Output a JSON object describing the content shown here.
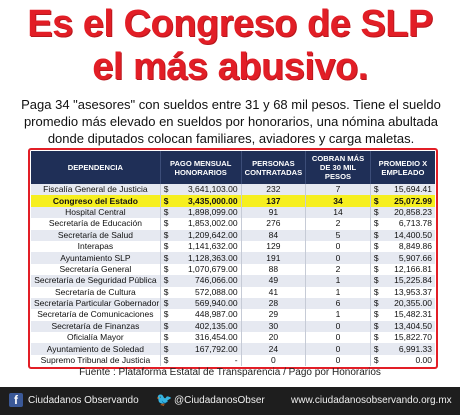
{
  "headline": {
    "line1": "Es el Congreso de SLP",
    "line2": "el más abusivo."
  },
  "intro": "Paga 34 \"asesores\" con sueldos entre 31 y 68 mil pesos.  Tiene el sueldo promedio más elevado en sueldos por honorarios, una nómina abultada donde diputados colocan familiares, aviadores y carga maletas.",
  "table": {
    "headers": [
      "DEPENDENCIA",
      "PAGO MENSUAL HONORARIOS",
      "PERSONAS CONTRATADAS",
      "COBRAN MÁS DE 30 MIL PESOS",
      "PROMEDIO X EMPLEADO"
    ],
    "currency": "$",
    "rows": [
      {
        "dep": "Fiscalía General de Justicia",
        "pay": "3,641,103.00",
        "people": "232",
        "over30": "7",
        "avg": "15,694.41",
        "hl": false
      },
      {
        "dep": "Congreso del Estado",
        "pay": "3,435,000.00",
        "people": "137",
        "over30": "34",
        "avg": "25,072.99",
        "hl": true
      },
      {
        "dep": "Hospital Central",
        "pay": "1,898,099.00",
        "people": "91",
        "over30": "14",
        "avg": "20,858.23",
        "hl": false
      },
      {
        "dep": "Secretaría de Educación",
        "pay": "1,853,002.00",
        "people": "276",
        "over30": "2",
        "avg": "6,713.78",
        "hl": false
      },
      {
        "dep": "Secretaría de Salud",
        "pay": "1,209,642.00",
        "people": "84",
        "over30": "5",
        "avg": "14,400.50",
        "hl": false
      },
      {
        "dep": "Interapas",
        "pay": "1,141,632.00",
        "people": "129",
        "over30": "0",
        "avg": "8,849.86",
        "hl": false
      },
      {
        "dep": "Ayuntamiento SLP",
        "pay": "1,128,363.00",
        "people": "191",
        "over30": "0",
        "avg": "5,907.66",
        "hl": false
      },
      {
        "dep": "Secretaría General",
        "pay": "1,070,679.00",
        "people": "88",
        "over30": "2",
        "avg": "12,166.81",
        "hl": false
      },
      {
        "dep": "Secretaría de Seguridad Pública",
        "pay": "746,066.00",
        "people": "49",
        "over30": "1",
        "avg": "15,225.84",
        "hl": false
      },
      {
        "dep": "Secretaría de Cultura",
        "pay": "572,088.00",
        "people": "41",
        "over30": "1",
        "avg": "13,953.37",
        "hl": false
      },
      {
        "dep": "Secretaría Particular Gobernador",
        "pay": "569,940.00",
        "people": "28",
        "over30": "6",
        "avg": "20,355.00",
        "hl": false
      },
      {
        "dep": "Secretaría de Comunicaciones",
        "pay": "448,987.00",
        "people": "29",
        "over30": "1",
        "avg": "15,482.31",
        "hl": false
      },
      {
        "dep": "Secretaría de Finanzas",
        "pay": "402,135.00",
        "people": "30",
        "over30": "0",
        "avg": "13,404.50",
        "hl": false
      },
      {
        "dep": "Oficialía Mayor",
        "pay": "316,454.00",
        "people": "20",
        "over30": "0",
        "avg": "15,822.70",
        "hl": false
      },
      {
        "dep": "Ayuntamiento de Soledad",
        "pay": "167,792.00",
        "people": "24",
        "over30": "0",
        "avg": "6,991.33",
        "hl": false
      },
      {
        "dep": "Supremo Tribunal de Justicia",
        "pay": "-",
        "people": "0",
        "over30": "0",
        "avg": "0.00",
        "hl": false
      }
    ]
  },
  "source": "Fuente :  Plataforma Estatal de Transparencia / Pago por Honorarios",
  "footer": {
    "facebook": "Ciudadanos Observando",
    "twitter": "@CiudadanosObser",
    "website": "www.ciudadanosobservando.org.mx"
  },
  "colors": {
    "headline": "#e21e26",
    "table_header": "#1f2f57",
    "highlight_row": "#f6ef1f",
    "footer_bg": "#1e1e1e"
  },
  "icons": [
    "facebook-icon",
    "twitter-icon"
  ]
}
